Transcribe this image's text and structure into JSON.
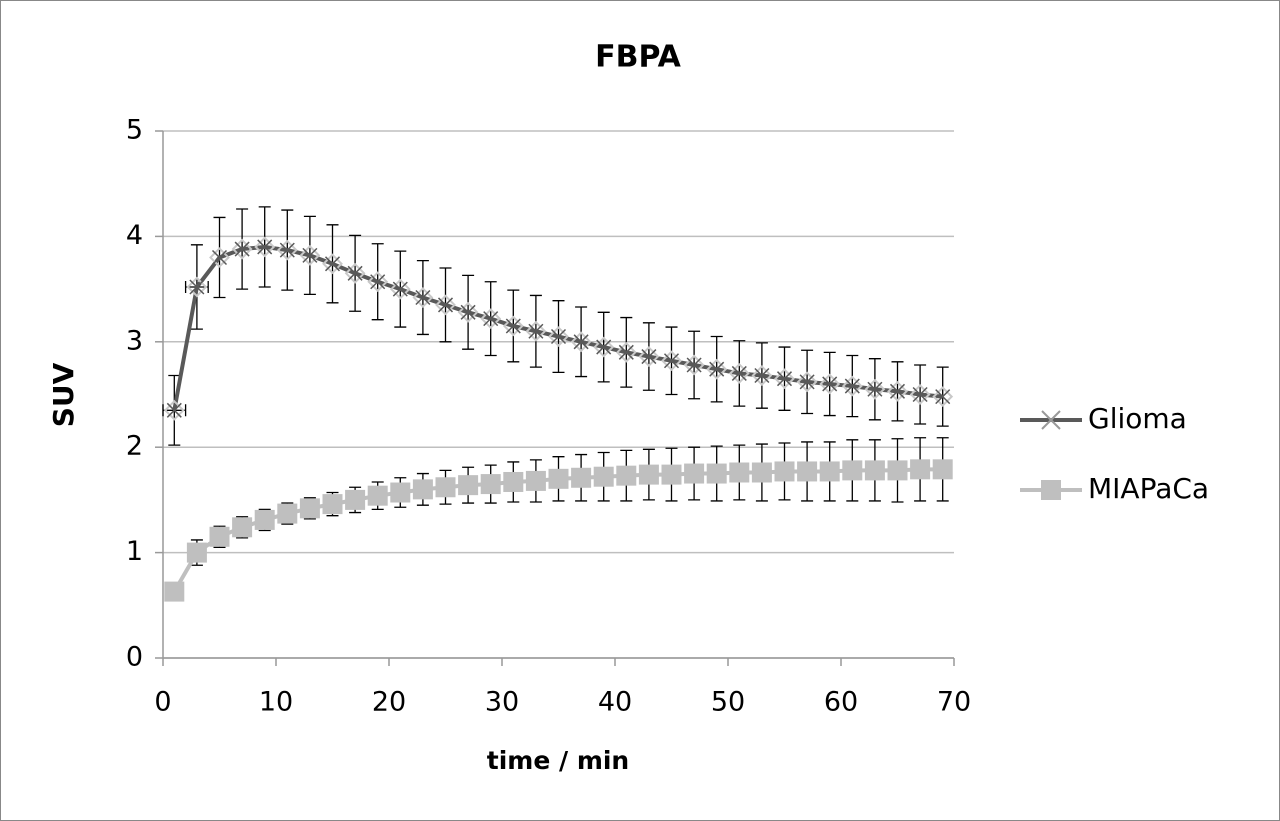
{
  "chart_data": {
    "type": "scatter",
    "title": "FBPA",
    "xlabel": "time / min",
    "ylabel": "SUV",
    "xlim": [
      0,
      70
    ],
    "xticks": [
      0,
      10,
      20,
      30,
      40,
      50,
      60,
      70
    ],
    "ylim": [
      0,
      5
    ],
    "yticks": [
      0,
      1,
      2,
      3,
      4,
      5
    ],
    "grid": true,
    "legend": "right",
    "series": [
      {
        "name": "Glioma",
        "color": "#595959",
        "x": [
          1,
          3,
          5,
          7,
          9,
          11,
          13,
          15,
          17,
          19,
          21,
          23,
          25,
          27,
          29,
          31,
          33,
          35,
          37,
          39,
          41,
          43,
          45,
          47,
          49,
          51,
          53,
          55,
          57,
          59,
          61,
          63,
          65,
          67,
          69
        ],
        "values": [
          2.35,
          3.52,
          3.8,
          3.88,
          3.9,
          3.87,
          3.82,
          3.74,
          3.65,
          3.57,
          3.5,
          3.42,
          3.35,
          3.28,
          3.22,
          3.15,
          3.1,
          3.05,
          3.0,
          2.95,
          2.9,
          2.86,
          2.82,
          2.78,
          2.74,
          2.7,
          2.68,
          2.65,
          2.62,
          2.6,
          2.58,
          2.55,
          2.53,
          2.5,
          2.48
        ],
        "errors": [
          0.33,
          0.4,
          0.38,
          0.38,
          0.38,
          0.38,
          0.37,
          0.37,
          0.36,
          0.36,
          0.36,
          0.35,
          0.35,
          0.35,
          0.35,
          0.34,
          0.34,
          0.34,
          0.33,
          0.33,
          0.33,
          0.32,
          0.32,
          0.32,
          0.31,
          0.31,
          0.31,
          0.3,
          0.3,
          0.3,
          0.29,
          0.29,
          0.28,
          0.28,
          0.28
        ],
        "x_errors": [
          1,
          1,
          null,
          null,
          null,
          null,
          null,
          null,
          null,
          null,
          null,
          null,
          null,
          null,
          null,
          null,
          null,
          null,
          null,
          null,
          null,
          null,
          null,
          null,
          null,
          null,
          null,
          null,
          null,
          null,
          null,
          null,
          null,
          null,
          null
        ]
      },
      {
        "name": "MIAPaCa",
        "color": "#bfbfbf",
        "x": [
          1,
          3,
          5,
          7,
          9,
          11,
          13,
          15,
          17,
          19,
          21,
          23,
          25,
          27,
          29,
          31,
          33,
          35,
          37,
          39,
          41,
          43,
          45,
          47,
          49,
          51,
          53,
          55,
          57,
          59,
          61,
          63,
          65,
          67,
          69
        ],
        "values": [
          0.63,
          1.0,
          1.15,
          1.24,
          1.31,
          1.37,
          1.42,
          1.46,
          1.5,
          1.54,
          1.57,
          1.6,
          1.62,
          1.64,
          1.65,
          1.67,
          1.68,
          1.7,
          1.71,
          1.72,
          1.73,
          1.74,
          1.74,
          1.75,
          1.75,
          1.76,
          1.76,
          1.77,
          1.77,
          1.77,
          1.78,
          1.78,
          1.78,
          1.79,
          1.79
        ],
        "errors": [
          0.06,
          0.12,
          0.1,
          0.1,
          0.1,
          0.1,
          0.1,
          0.11,
          0.12,
          0.13,
          0.14,
          0.15,
          0.16,
          0.17,
          0.18,
          0.19,
          0.2,
          0.21,
          0.22,
          0.23,
          0.24,
          0.24,
          0.25,
          0.25,
          0.26,
          0.26,
          0.27,
          0.27,
          0.28,
          0.28,
          0.29,
          0.29,
          0.3,
          0.3,
          0.3
        ]
      }
    ]
  }
}
